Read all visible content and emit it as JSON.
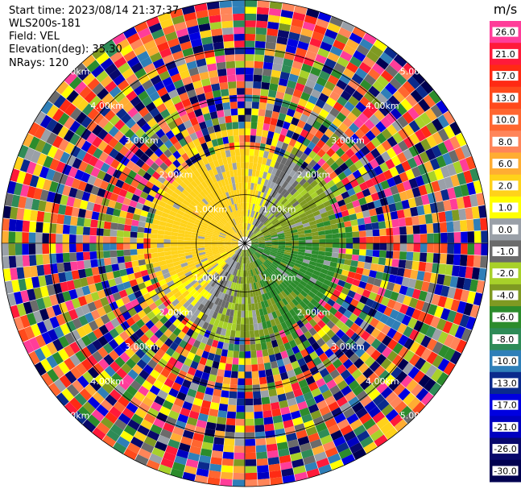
{
  "header": {
    "start_time": "Start time: 2023/08/14 21:37:37",
    "instrument": "WLS200s-181",
    "field": "Field: VEL",
    "elevation": "Elevation(deg): 35.30",
    "nrays": "NRays: 120"
  },
  "chart_data": {
    "type": "heatmap",
    "projection": "polar PPI",
    "field": "VEL",
    "units": "m/s",
    "n_rays": 120,
    "n_gates": 36,
    "max_range_km": 5.0,
    "range_rings_km": [
      1.0,
      2.0,
      3.0,
      4.0,
      5.0
    ],
    "range_labels": [
      "1.00km",
      "2.00km",
      "3.00km",
      "4.00km",
      "5.00km"
    ],
    "range_label_suffix_km": "km",
    "spoke_interval_deg": 30,
    "colorbar": {
      "title": "m/s",
      "tick_labels": [
        "26.0",
        "21.0",
        "17.0",
        "13.0",
        "10.0",
        "8.0",
        "6.0",
        "2.0",
        "1.0",
        "0.0",
        "-1.0",
        "-2.0",
        "-4.0",
        "-6.0",
        "-8.0",
        "-10.0",
        "-13.0",
        "-17.0",
        "-21.0",
        "-26.0",
        "-30.0"
      ],
      "colors": [
        "#ff3d99",
        "#ff1a3a",
        "#ff2a14",
        "#ff4a1c",
        "#ff6630",
        "#ff8559",
        "#ffad33",
        "#ffd21a",
        "#ffff00",
        "#9aa0a8",
        "#6b6b6b",
        "#a8d12a",
        "#7f9a22",
        "#2c8c2c",
        "#2e8b57",
        "#2f7fb8",
        "#0a2a8c",
        "#0000e0",
        "#0000c0",
        "#08086b",
        "#000050"
      ]
    }
  }
}
